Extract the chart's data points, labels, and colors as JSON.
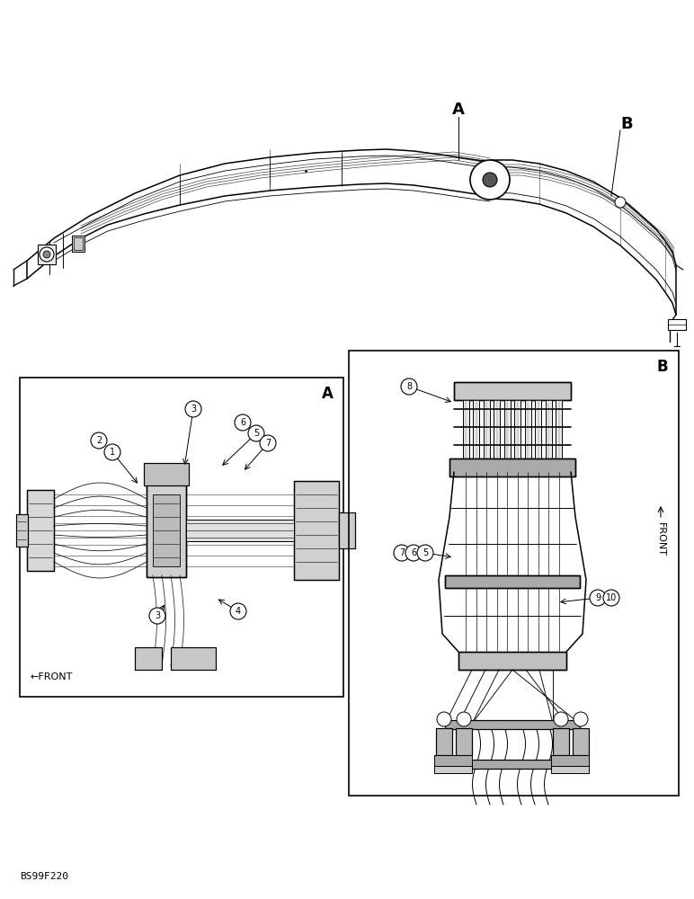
{
  "background_color": "#ffffff",
  "figure_width": 7.72,
  "figure_height": 10.0,
  "dpi": 100,
  "watermark_text": "BS99F220",
  "label_A_top": {
    "text": "A",
    "fontsize": 13
  },
  "label_B_top": {
    "text": "B",
    "fontsize": 13
  },
  "box_A_label": "A",
  "box_B_label": "B",
  "front_A": "←FRONT",
  "front_B": "FRONT"
}
